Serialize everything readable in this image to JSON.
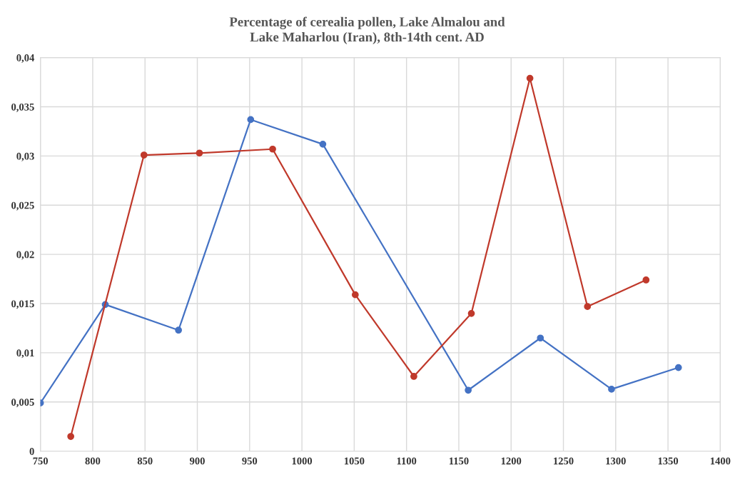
{
  "chart_data": {
    "type": "line",
    "title": "Percentage of cerealia pollen, Lake Almalou and\nLake Maharlou (Iran), 8th-14th cent. AD",
    "series": [
      {
        "color": "#4472c4",
        "x": [
          750,
          812,
          882,
          951,
          1020,
          1159,
          1228,
          1296,
          1360
        ],
        "values": [
          0.0049,
          0.0149,
          0.0123,
          0.0337,
          0.0312,
          0.0062,
          0.0115,
          0.0063,
          0.0085
        ]
      },
      {
        "color": "#c0392b",
        "x": [
          779,
          849,
          902,
          972,
          1051,
          1107,
          1162,
          1218,
          1273,
          1329
        ],
        "values": [
          0.0015,
          0.0301,
          0.0303,
          0.0307,
          0.0159,
          0.0076,
          0.014,
          0.0379,
          0.0147,
          0.0174
        ]
      }
    ],
    "xlim": [
      750,
      1400
    ],
    "xticks": [
      750,
      800,
      850,
      900,
      950,
      1000,
      1050,
      1100,
      1150,
      1200,
      1250,
      1300,
      1350,
      1400
    ],
    "ylim": [
      0,
      0.04
    ],
    "yticks": [
      {
        "value": 0,
        "label": "0"
      },
      {
        "value": 0.005,
        "label": "0,005"
      },
      {
        "value": 0.01,
        "label": "0,01"
      },
      {
        "value": 0.015,
        "label": "0,015"
      },
      {
        "value": 0.02,
        "label": "0,02"
      },
      {
        "value": 0.025,
        "label": "0,025"
      },
      {
        "value": 0.03,
        "label": "0,03"
      },
      {
        "value": 0.035,
        "label": "0,035"
      },
      {
        "value": 0.04,
        "label": "0,04"
      }
    ],
    "grid": true,
    "legend": false,
    "marker": "circle",
    "line_style": "solid"
  }
}
